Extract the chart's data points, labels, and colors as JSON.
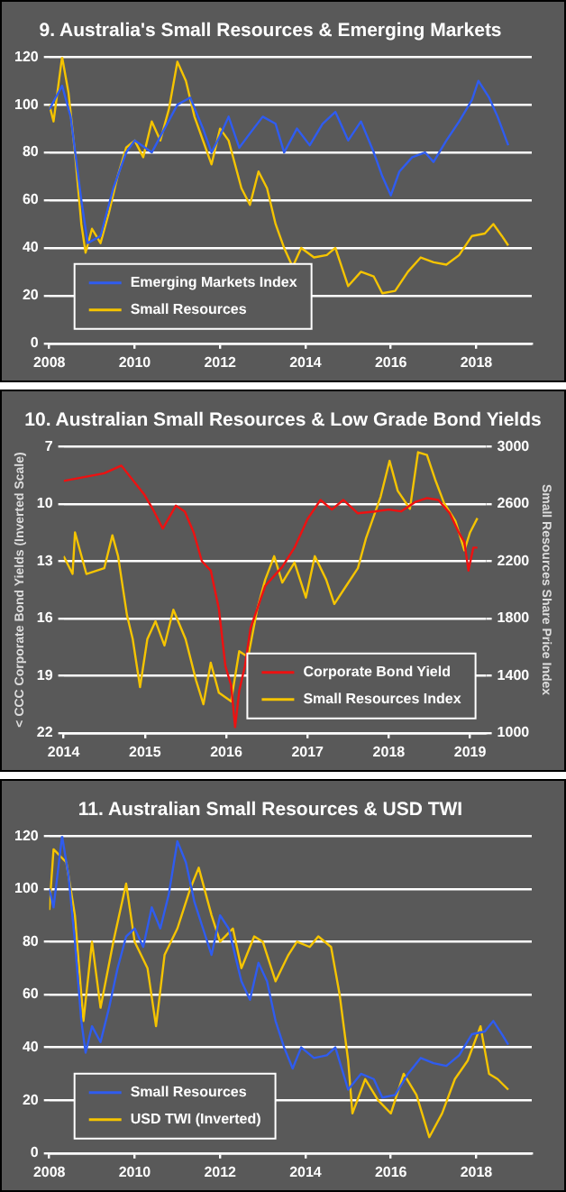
{
  "chart_data": [
    {
      "type": "line",
      "title": "9. Australia's Small Resources & Emerging Markets",
      "xlim": [
        2008,
        2019.3
      ],
      "xticks": [
        2008,
        2010,
        2012,
        2014,
        2016,
        2018
      ],
      "ylim": [
        0,
        120
      ],
      "yticks": [
        0,
        20,
        40,
        60,
        80,
        100,
        120
      ],
      "grid": "y",
      "legend": "bottom left",
      "series": [
        {
          "name": "Emerging Markets Index",
          "color": "#2f5cf0",
          "x": [
            2008.0,
            2008.3,
            2008.5,
            2008.75,
            2008.9,
            2009.2,
            2009.5,
            2009.8,
            2010.0,
            2010.4,
            2010.7,
            2011.0,
            2011.3,
            2011.6,
            2011.8,
            2012.0,
            2012.2,
            2012.45,
            2012.7,
            2013.0,
            2013.3,
            2013.5,
            2013.8,
            2014.1,
            2014.4,
            2014.7,
            2015.0,
            2015.3,
            2015.6,
            2015.8,
            2016.0,
            2016.2,
            2016.5,
            2016.8,
            2017.0,
            2017.3,
            2017.6,
            2017.9,
            2018.05,
            2018.3,
            2018.5,
            2018.75
          ],
          "values": [
            98,
            108,
            95,
            60,
            42,
            45,
            65,
            80,
            85,
            80,
            90,
            100,
            103,
            90,
            80,
            87,
            95,
            82,
            88,
            95,
            92,
            80,
            90,
            83,
            92,
            97,
            85,
            93,
            80,
            70,
            62,
            72,
            78,
            80,
            76,
            85,
            93,
            102,
            110,
            103,
            95,
            83
          ]
        },
        {
          "name": "Small Resources",
          "color": "#f5c400",
          "x": [
            2008.0,
            2008.1,
            2008.3,
            2008.45,
            2008.6,
            2008.75,
            2008.85,
            2009.0,
            2009.2,
            2009.4,
            2009.6,
            2009.8,
            2010.0,
            2010.2,
            2010.4,
            2010.6,
            2010.8,
            2011.0,
            2011.2,
            2011.4,
            2011.6,
            2011.8,
            2012.0,
            2012.2,
            2012.5,
            2012.7,
            2012.9,
            2013.1,
            2013.3,
            2013.5,
            2013.7,
            2013.9,
            2014.2,
            2014.5,
            2014.7,
            2015.0,
            2015.3,
            2015.6,
            2015.8,
            2016.1,
            2016.4,
            2016.7,
            2017.0,
            2017.3,
            2017.6,
            2017.9,
            2018.2,
            2018.4,
            2018.6,
            2018.75
          ],
          "values": [
            100,
            93,
            120,
            105,
            80,
            50,
            38,
            48,
            42,
            55,
            70,
            82,
            85,
            78,
            93,
            85,
            98,
            118,
            110,
            95,
            85,
            75,
            90,
            85,
            65,
            58,
            72,
            65,
            50,
            40,
            32,
            40,
            36,
            37,
            40,
            24,
            30,
            28,
            21,
            22,
            30,
            36,
            34,
            33,
            37,
            45,
            46,
            50,
            45,
            41
          ]
        }
      ]
    },
    {
      "type": "line",
      "title": "10. Australian Small Resources & Low Grade Bond Yields",
      "ylabel": "< CCC Corporate Bond Yields (Inverted Scale)",
      "y2label": "Small Resources Share Price Index",
      "xlim": [
        2014,
        2019.2
      ],
      "xticks": [
        2014,
        2015,
        2016,
        2017,
        2018,
        2019
      ],
      "ylim": [
        22,
        7
      ],
      "yticks": [
        7,
        10,
        13,
        16,
        19,
        22
      ],
      "y2lim": [
        1000,
        3000
      ],
      "y2ticks": [
        1000,
        1400,
        1800,
        2200,
        2600,
        3000
      ],
      "grid": "y",
      "legend": "bottom right",
      "series": [
        {
          "name": "Corporate Bond Yield",
          "color": "#ee1111",
          "x": [
            2014.0,
            2014.5,
            2014.71,
            2014.99,
            2015.1,
            2015.22,
            2015.38,
            2015.49,
            2015.6,
            2015.7,
            2015.81,
            2015.91,
            2015.99,
            2016.06,
            2016.11,
            2016.16,
            2016.23,
            2016.3,
            2016.48,
            2016.69,
            2016.84,
            2017.0,
            2017.16,
            2017.3,
            2017.44,
            2017.62,
            2017.83,
            2018.0,
            2018.15,
            2018.33,
            2018.47,
            2018.61,
            2018.75,
            2018.86,
            2018.93,
            2018.98,
            2019.04,
            2019.09
          ],
          "values": [
            8.8,
            8.4,
            8.0,
            9.5,
            10.3,
            11.3,
            10.1,
            10.4,
            11.5,
            13.0,
            13.5,
            15.5,
            18.5,
            19.5,
            21.7,
            19.8,
            18.5,
            16.5,
            14.3,
            13.3,
            12.3,
            10.8,
            9.8,
            10.3,
            9.8,
            10.5,
            10.4,
            10.3,
            10.4,
            9.9,
            9.7,
            9.8,
            10.5,
            11.5,
            12.0,
            13.5,
            12.3,
            12.3
          ],
          "axis": "y"
        },
        {
          "name": "Small Resources Index",
          "color": "#f5c400",
          "axis": "y2",
          "x": [
            2014.0,
            2014.11,
            2014.14,
            2014.28,
            2014.5,
            2014.6,
            2014.67,
            2014.78,
            2014.85,
            2014.94,
            2015.03,
            2015.13,
            2015.24,
            2015.35,
            2015.5,
            2015.63,
            2015.72,
            2015.81,
            2015.91,
            2016.06,
            2016.16,
            2016.27,
            2016.38,
            2016.48,
            2016.59,
            2016.69,
            2016.84,
            2016.98,
            2017.09,
            2017.23,
            2017.33,
            2017.48,
            2017.62,
            2017.72,
            2017.9,
            2018.01,
            2018.11,
            2018.26,
            2018.36,
            2018.47,
            2018.57,
            2018.68,
            2018.82,
            2018.93,
            2019.0,
            2019.09
          ],
          "values": [
            2234,
            2110,
            2400,
            2110,
            2150,
            2380,
            2234,
            1820,
            1655,
            1320,
            1655,
            1780,
            1610,
            1860,
            1655,
            1365,
            1200,
            1490,
            1280,
            1220,
            1570,
            1530,
            1860,
            2070,
            2234,
            2050,
            2190,
            1945,
            2234,
            2070,
            1900,
            2030,
            2150,
            2360,
            2650,
            2900,
            2690,
            2565,
            2960,
            2940,
            2770,
            2605,
            2480,
            2275,
            2400,
            2500
          ]
        }
      ]
    },
    {
      "type": "line",
      "title": "11. Australian Small Resources & USD TWI",
      "xlim": [
        2008,
        2019.3
      ],
      "xticks": [
        2008,
        2010,
        2012,
        2014,
        2016,
        2018
      ],
      "ylim": [
        0,
        120
      ],
      "yticks": [
        0,
        20,
        40,
        60,
        80,
        100,
        120
      ],
      "grid": "y",
      "legend": "bottom left",
      "series": [
        {
          "name": "Small Resources",
          "color": "#2f5cf0",
          "x": [
            2008.0,
            2008.1,
            2008.3,
            2008.45,
            2008.6,
            2008.75,
            2008.85,
            2009.0,
            2009.2,
            2009.4,
            2009.6,
            2009.8,
            2010.0,
            2010.2,
            2010.4,
            2010.6,
            2010.8,
            2011.0,
            2011.2,
            2011.4,
            2011.6,
            2011.8,
            2012.0,
            2012.2,
            2012.5,
            2012.7,
            2012.9,
            2013.1,
            2013.3,
            2013.5,
            2013.7,
            2013.9,
            2014.2,
            2014.5,
            2014.7,
            2015.0,
            2015.3,
            2015.6,
            2015.8,
            2016.1,
            2016.4,
            2016.7,
            2017.0,
            2017.3,
            2017.6,
            2017.9,
            2018.2,
            2018.4,
            2018.6,
            2018.75
          ],
          "values": [
            100,
            93,
            120,
            105,
            80,
            50,
            38,
            48,
            42,
            55,
            70,
            82,
            85,
            78,
            93,
            85,
            98,
            118,
            110,
            95,
            85,
            75,
            90,
            85,
            65,
            58,
            72,
            65,
            50,
            40,
            32,
            40,
            36,
            37,
            40,
            24,
            30,
            28,
            21,
            22,
            30,
            36,
            34,
            33,
            37,
            45,
            46,
            50,
            45,
            41
          ]
        },
        {
          "name": "USD TWI (Inverted)",
          "color": "#f5c400",
          "x": [
            2008.0,
            2008.1,
            2008.4,
            2008.6,
            2008.8,
            2009.0,
            2009.2,
            2009.5,
            2009.8,
            2010.0,
            2010.3,
            2010.5,
            2010.7,
            2011.0,
            2011.3,
            2011.5,
            2011.8,
            2012.0,
            2012.3,
            2012.5,
            2012.8,
            2013.0,
            2013.3,
            2013.6,
            2013.8,
            2014.1,
            2014.3,
            2014.6,
            2014.8,
            2015.0,
            2015.1,
            2015.4,
            2015.7,
            2016.0,
            2016.3,
            2016.6,
            2016.9,
            2017.2,
            2017.5,
            2017.8,
            2018.1,
            2018.3,
            2018.5,
            2018.75
          ],
          "values": [
            92,
            115,
            110,
            90,
            50,
            80,
            55,
            80,
            102,
            80,
            70,
            48,
            75,
            85,
            100,
            108,
            90,
            80,
            85,
            70,
            82,
            80,
            65,
            75,
            80,
            78,
            82,
            78,
            60,
            35,
            15,
            28,
            20,
            15,
            30,
            22,
            6,
            15,
            28,
            35,
            48,
            30,
            28,
            24
          ]
        }
      ]
    }
  ]
}
